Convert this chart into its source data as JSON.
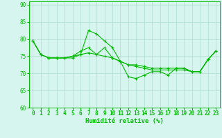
{
  "xlabel": "Humidité relative (%)",
  "background_color": "#d6f5ee",
  "grid_color": "#b0ddd0",
  "line_color": "#00bb00",
  "spine_color": "#00bb00",
  "xlim": [
    -0.5,
    23.5
  ],
  "ylim": [
    60,
    91
  ],
  "yticks": [
    60,
    65,
    70,
    75,
    80,
    85,
    90
  ],
  "xticks": [
    0,
    1,
    2,
    3,
    4,
    5,
    6,
    7,
    8,
    9,
    10,
    11,
    12,
    13,
    14,
    15,
    16,
    17,
    18,
    19,
    20,
    21,
    22,
    23
  ],
  "series": [
    [
      79.5,
      75.5,
      74.5,
      74.5,
      74.5,
      74.5,
      75.5,
      82.5,
      81.5,
      79.5,
      77.5,
      73.5,
      69.0,
      68.5,
      69.5,
      70.5,
      70.5,
      69.5,
      71.5,
      71.5,
      70.5,
      70.5,
      74.0,
      76.5
    ],
    [
      79.5,
      75.5,
      74.5,
      74.5,
      74.5,
      75.0,
      76.5,
      77.5,
      75.5,
      77.5,
      74.5,
      73.5,
      72.5,
      72.5,
      72.0,
      71.5,
      71.5,
      71.5,
      71.5,
      71.5,
      70.5,
      70.5,
      74.0,
      76.5
    ],
    [
      79.5,
      75.5,
      74.5,
      74.5,
      74.5,
      75.0,
      75.5,
      76.0,
      75.5,
      75.0,
      74.5,
      73.5,
      72.5,
      72.0,
      71.5,
      71.0,
      71.0,
      71.0,
      71.0,
      71.0,
      70.5,
      70.5,
      74.0,
      76.5
    ]
  ],
  "marker": "+",
  "markersize": 3.5,
  "linewidth": 0.8,
  "tick_fontsize": 5.5,
  "xlabel_fontsize": 6.5
}
